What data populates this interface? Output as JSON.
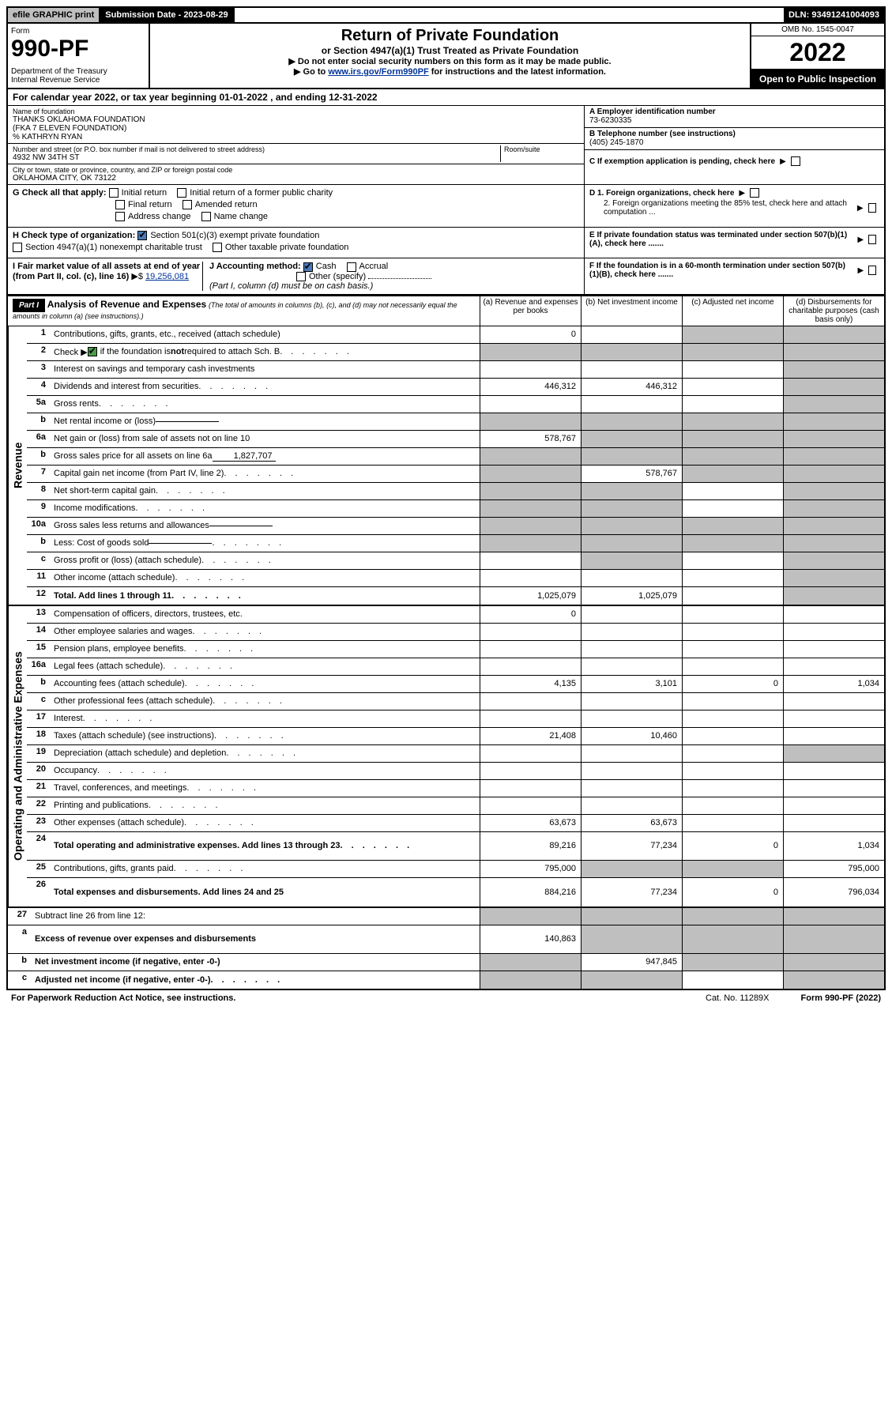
{
  "topbar": {
    "efile": "efile GRAPHIC print",
    "submission": "Submission Date - 2023-08-29",
    "dln": "DLN: 93491241004093"
  },
  "header": {
    "form_label": "Form",
    "form_number": "990-PF",
    "dept": "Department of the Treasury\nInternal Revenue Service",
    "title": "Return of Private Foundation",
    "subtitle": "or Section 4947(a)(1) Trust Treated as Private Foundation",
    "instr1": "▶ Do not enter social security numbers on this form as it may be made public.",
    "instr2_pre": "▶ Go to ",
    "instr2_link": "www.irs.gov/Form990PF",
    "instr2_post": " for instructions and the latest information.",
    "omb": "OMB No. 1545-0047",
    "year": "2022",
    "open": "Open to Public Inspection"
  },
  "calyear": "For calendar year 2022, or tax year beginning 01-01-2022          , and ending 12-31-2022",
  "org": {
    "name_label": "Name of foundation",
    "name": "THANKS OKLAHOMA FOUNDATION\n(FKA 7 ELEVEN FOUNDATION)\n% KATHRYN RYAN",
    "addr_label": "Number and street (or P.O. box number if mail is not delivered to street address)",
    "addr": "4932 NW 34th ST",
    "room_label": "Room/suite",
    "city_label": "City or town, state or province, country, and ZIP or foreign postal code",
    "city": "OKLAHOMA CITY, OK  73122",
    "ein_label": "A Employer identification number",
    "ein": "73-6230335",
    "phone_label": "B Telephone number (see instructions)",
    "phone": "(405) 245-1870",
    "c_label": "C If exemption application is pending, check here",
    "d1_label": "D 1. Foreign organizations, check here",
    "d2_label": "2. Foreign organizations meeting the 85% test, check here and attach computation ...",
    "e_label": "E  If private foundation status was terminated under section 507(b)(1)(A), check here .......",
    "f_label": "F  If the foundation is in a 60-month termination under section 507(b)(1)(B), check here .......",
    "g_label": "G Check all that apply:",
    "g_opts": [
      "Initial return",
      "Initial return of a former public charity",
      "Final return",
      "Amended return",
      "Address change",
      "Name change"
    ],
    "h_label": "H Check type of organization:",
    "h_opts": [
      "Section 501(c)(3) exempt private foundation",
      "Section 4947(a)(1) nonexempt charitable trust",
      "Other taxable private foundation"
    ],
    "i_label": "I Fair market value of all assets at end of year (from Part II, col. (c), line 16)",
    "i_val": "19,256,081",
    "j_label": "J Accounting method:",
    "j_opts": [
      "Cash",
      "Accrual",
      "Other (specify)"
    ],
    "j_note": "(Part I, column (d) must be on cash basis.)"
  },
  "part1": {
    "label": "Part I",
    "title": "Analysis of Revenue and Expenses",
    "note": "(The total of amounts in columns (b), (c), and (d) may not necessarily equal the amounts in column (a) (see instructions).)",
    "cols": {
      "a": "(a)  Revenue and expenses per books",
      "b": "(b)  Net investment income",
      "c": "(c)  Adjusted net income",
      "d": "(d)  Disbursements for charitable purposes (cash basis only)"
    }
  },
  "sections": {
    "revenue": "Revenue",
    "opex": "Operating and Administrative Expenses"
  },
  "rows": [
    {
      "n": "1",
      "d": "Contributions, gifts, grants, etc., received (attach schedule)",
      "a": "0",
      "b": "",
      "c": "s",
      "dcol": "s"
    },
    {
      "n": "2",
      "d": "Check ▶ ☑ if the foundation is not required to attach Sch. B",
      "dots": true,
      "a": "s",
      "b": "s",
      "c": "s",
      "dcol": "s",
      "checked": true
    },
    {
      "n": "3",
      "d": "Interest on savings and temporary cash investments",
      "a": "",
      "b": "",
      "c": "",
      "dcol": "s"
    },
    {
      "n": "4",
      "d": "Dividends and interest from securities",
      "dots": true,
      "a": "446,312",
      "b": "446,312",
      "c": "",
      "dcol": "s"
    },
    {
      "n": "5a",
      "d": "Gross rents",
      "dots": true,
      "a": "",
      "b": "",
      "c": "",
      "dcol": "s"
    },
    {
      "n": "b",
      "d": "Net rental income or (loss)",
      "inline": "",
      "a": "s",
      "b": "s",
      "c": "s",
      "dcol": "s"
    },
    {
      "n": "6a",
      "d": "Net gain or (loss) from sale of assets not on line 10",
      "a": "578,767",
      "b": "s",
      "c": "s",
      "dcol": "s"
    },
    {
      "n": "b",
      "d": "Gross sales price for all assets on line 6a",
      "inline": "1,827,707",
      "a": "s",
      "b": "s",
      "c": "s",
      "dcol": "s"
    },
    {
      "n": "7",
      "d": "Capital gain net income (from Part IV, line 2)",
      "dots": true,
      "a": "s",
      "b": "578,767",
      "c": "s",
      "dcol": "s"
    },
    {
      "n": "8",
      "d": "Net short-term capital gain",
      "dots": true,
      "a": "s",
      "b": "s",
      "c": "",
      "dcol": "s"
    },
    {
      "n": "9",
      "d": "Income modifications",
      "dots": true,
      "a": "s",
      "b": "s",
      "c": "",
      "dcol": "s"
    },
    {
      "n": "10a",
      "d": "Gross sales less returns and allowances",
      "inline": "",
      "a": "s",
      "b": "s",
      "c": "s",
      "dcol": "s"
    },
    {
      "n": "b",
      "d": "Less: Cost of goods sold",
      "dots": true,
      "inline": "",
      "a": "s",
      "b": "s",
      "c": "s",
      "dcol": "s"
    },
    {
      "n": "c",
      "d": "Gross profit or (loss) (attach schedule)",
      "dots": true,
      "a": "",
      "b": "s",
      "c": "",
      "dcol": "s"
    },
    {
      "n": "11",
      "d": "Other income (attach schedule)",
      "dots": true,
      "a": "",
      "b": "",
      "c": "",
      "dcol": "s"
    },
    {
      "n": "12",
      "d": "Total. Add lines 1 through 11",
      "dots": true,
      "bold": true,
      "a": "1,025,079",
      "b": "1,025,079",
      "c": "",
      "dcol": "s"
    },
    {
      "n": "13",
      "d": "Compensation of officers, directors, trustees, etc.",
      "a": "0",
      "b": "",
      "c": "",
      "dcol": "",
      "sec": "opex"
    },
    {
      "n": "14",
      "d": "Other employee salaries and wages",
      "dots": true,
      "a": "",
      "b": "",
      "c": "",
      "dcol": ""
    },
    {
      "n": "15",
      "d": "Pension plans, employee benefits",
      "dots": true,
      "a": "",
      "b": "",
      "c": "",
      "dcol": ""
    },
    {
      "n": "16a",
      "d": "Legal fees (attach schedule)",
      "dots": true,
      "a": "",
      "b": "",
      "c": "",
      "dcol": ""
    },
    {
      "n": "b",
      "d": "Accounting fees (attach schedule)",
      "dots": true,
      "a": "4,135",
      "b": "3,101",
      "c": "0",
      "dcol": "1,034"
    },
    {
      "n": "c",
      "d": "Other professional fees (attach schedule)",
      "dots": true,
      "a": "",
      "b": "",
      "c": "",
      "dcol": ""
    },
    {
      "n": "17",
      "d": "Interest",
      "dots": true,
      "a": "",
      "b": "",
      "c": "",
      "dcol": ""
    },
    {
      "n": "18",
      "d": "Taxes (attach schedule) (see instructions)",
      "dots": true,
      "a": "21,408",
      "b": "10,460",
      "c": "",
      "dcol": ""
    },
    {
      "n": "19",
      "d": "Depreciation (attach schedule) and depletion",
      "dots": true,
      "a": "",
      "b": "",
      "c": "",
      "dcol": "s"
    },
    {
      "n": "20",
      "d": "Occupancy",
      "dots": true,
      "a": "",
      "b": "",
      "c": "",
      "dcol": ""
    },
    {
      "n": "21",
      "d": "Travel, conferences, and meetings",
      "dots": true,
      "a": "",
      "b": "",
      "c": "",
      "dcol": ""
    },
    {
      "n": "22",
      "d": "Printing and publications",
      "dots": true,
      "a": "",
      "b": "",
      "c": "",
      "dcol": ""
    },
    {
      "n": "23",
      "d": "Other expenses (attach schedule)",
      "dots": true,
      "a": "63,673",
      "b": "63,673",
      "c": "",
      "dcol": ""
    },
    {
      "n": "24",
      "d": "Total operating and administrative expenses. Add lines 13 through 23",
      "dots": true,
      "bold": true,
      "a": "89,216",
      "b": "77,234",
      "c": "0",
      "dcol": "1,034",
      "tall": true
    },
    {
      "n": "25",
      "d": "Contributions, gifts, grants paid",
      "dots": true,
      "a": "795,000",
      "b": "s",
      "c": "s",
      "dcol": "795,000"
    },
    {
      "n": "26",
      "d": "Total expenses and disbursements. Add lines 24 and 25",
      "bold": true,
      "a": "884,216",
      "b": "77,234",
      "c": "0",
      "dcol": "796,034",
      "tall": true
    },
    {
      "n": "27",
      "d": "Subtract line 26 from line 12:",
      "a": "s",
      "b": "s",
      "c": "s",
      "dcol": "s",
      "sec": "end"
    },
    {
      "n": "a",
      "d": "Excess of revenue over expenses and disbursements",
      "bold": true,
      "a": "140,863",
      "b": "s",
      "c": "s",
      "dcol": "s",
      "tall": true
    },
    {
      "n": "b",
      "d": "Net investment income (if negative, enter -0-)",
      "bold": true,
      "a": "s",
      "b": "947,845",
      "c": "s",
      "dcol": "s"
    },
    {
      "n": "c",
      "d": "Adjusted net income (if negative, enter -0-)",
      "dots": true,
      "bold": true,
      "a": "s",
      "b": "s",
      "c": "",
      "dcol": "s"
    }
  ],
  "footer": {
    "pra": "For Paperwork Reduction Act Notice, see instructions.",
    "cat": "Cat. No. 11289X",
    "form": "Form 990-PF (2022)"
  }
}
